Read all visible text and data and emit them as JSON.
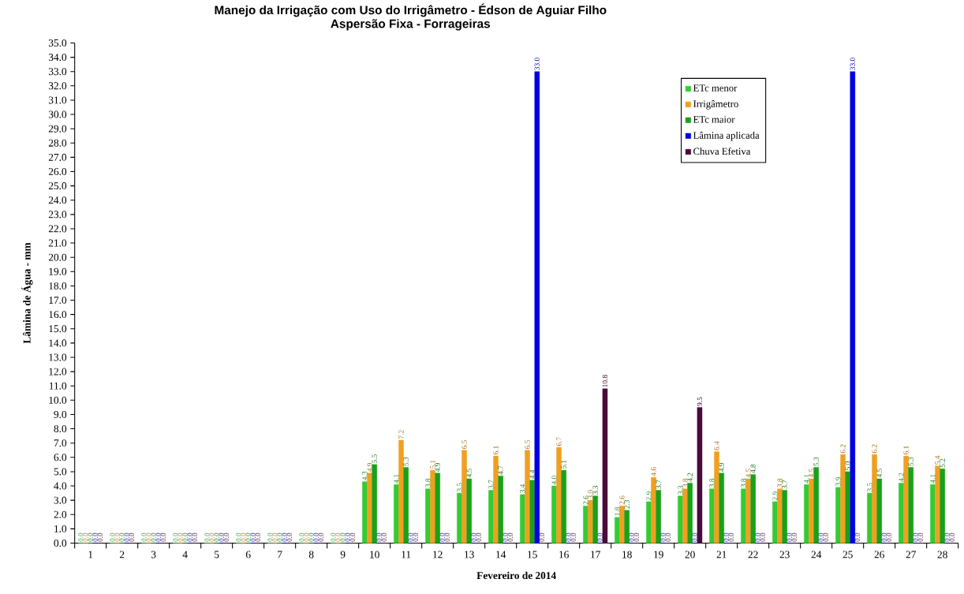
{
  "chart_data": {
    "type": "bar",
    "title": "Manejo da Irrigação com Uso do Irrigâmetro - Édson de Aguiar Filho",
    "subtitle": "Aspersão Fixa - Forrageiras",
    "xlabel": "Fevereiro de 2014",
    "ylabel": "Lâmina de Água - mm",
    "categories": [
      "1",
      "2",
      "3",
      "4",
      "5",
      "6",
      "7",
      "8",
      "9",
      "10",
      "11",
      "12",
      "13",
      "14",
      "15",
      "16",
      "17",
      "18",
      "19",
      "20",
      "21",
      "22",
      "23",
      "24",
      "25",
      "26",
      "27",
      "28"
    ],
    "series": [
      {
        "name": "ETc menor",
        "color": "#33cc33",
        "values": [
          0,
          0,
          0,
          0,
          0,
          0,
          0,
          0,
          0,
          4.3,
          4.1,
          3.8,
          3.5,
          3.7,
          3.4,
          4.0,
          2.6,
          1.8,
          2.9,
          3.3,
          3.8,
          3.8,
          2.9,
          4.1,
          3.9,
          3.5,
          4.2,
          4.1
        ],
        "value_labels": [
          "0.0",
          "0.0",
          "0.0",
          "0.0",
          "0.0",
          "0.0",
          "0.0",
          "0.0",
          "0.0",
          "4.3",
          "4.1",
          "3.8",
          "3.5",
          "3.7",
          "3.4",
          "4.0",
          "2.6",
          "1.8",
          "2.9",
          "3.3",
          "3.8",
          "3.8",
          "2.9",
          "4.1",
          "3.9",
          "3.5",
          "4.2",
          "4.1"
        ]
      },
      {
        "name": "Irrigâmetro",
        "color": "#f0a020",
        "values": [
          0,
          0,
          0,
          0,
          0,
          0,
          0,
          0,
          0,
          4.9,
          7.2,
          5.1,
          6.5,
          6.1,
          6.5,
          6.7,
          3.0,
          2.6,
          4.6,
          3.8,
          6.4,
          4.5,
          3.8,
          4.5,
          6.2,
          6.2,
          6.1,
          5.4
        ],
        "value_labels": [
          "0.0",
          "0.0",
          "0.0",
          "0.0",
          "0.0",
          "0.0",
          "0.0",
          "0.0",
          "0.0",
          "4.9",
          "7.2",
          "5.1",
          "6.5",
          "6.1",
          "6.5",
          "6.7",
          "3.0",
          "2.6",
          "4.6",
          "3.8",
          "6.4",
          "4.5",
          "3.8",
          "4.5",
          "6.2",
          "6.2",
          "6.1",
          "5.4"
        ]
      },
      {
        "name": "ETc maior",
        "color": "#1aa01a",
        "values": [
          0,
          0,
          0,
          0,
          0,
          0,
          0,
          0,
          0,
          5.5,
          5.3,
          4.9,
          4.5,
          4.7,
          4.4,
          5.1,
          3.3,
          2.3,
          3.7,
          4.2,
          4.9,
          4.8,
          3.7,
          5.3,
          5.0,
          4.5,
          5.3,
          5.2
        ],
        "value_labels": [
          "0.0",
          "0.0",
          "0.0",
          "0.0",
          "0.0",
          "0.0",
          "0.0",
          "0.0",
          "0.0",
          "5.5",
          "5.3",
          "4.9",
          "4.5",
          "4.7",
          "4.4",
          "5.1",
          "3.3",
          "2.3",
          "3.7",
          "4.2",
          "4.9",
          "4.8",
          "3.7",
          "5.3",
          "5.0",
          "4.5",
          "5.3",
          "5.2"
        ]
      },
      {
        "name": "Lâmina aplicada",
        "color": "#0000e0",
        "values": [
          0,
          0,
          0,
          0,
          0,
          0,
          0,
          0,
          0,
          0,
          0,
          0,
          0,
          0,
          33.0,
          0,
          0,
          0,
          0,
          0,
          0,
          0,
          0,
          0,
          33.0,
          0,
          0,
          0
        ],
        "value_labels": [
          "0.0",
          "0.0",
          "0.0",
          "0.0",
          "0.0",
          "0.0",
          "0.0",
          "0.0",
          "0.0",
          "0.0",
          "0.0",
          "0.0",
          "0.0",
          "0.0",
          "33.0",
          "0.0",
          "0.0",
          "0.0",
          "0.0",
          "0.0",
          "0.0",
          "0.0",
          "0.0",
          "0.0",
          "33.0",
          "0.0",
          "0.0",
          "0.0"
        ]
      },
      {
        "name": "Chuva Efetiva",
        "color": "#4a0a3a",
        "values": [
          0,
          0,
          0,
          0,
          0,
          0,
          0,
          0,
          0,
          0,
          0,
          0,
          0,
          0,
          0,
          0,
          10.8,
          0,
          0,
          9.5,
          0,
          0,
          0,
          0,
          0,
          0,
          0,
          0
        ],
        "value_labels": [
          "0.0",
          "0.0",
          "0.0",
          "0.0",
          "0.0",
          "0.0",
          "0.0",
          "0.0",
          "0.0",
          "0.0",
          "0.0",
          "0.0",
          "0.0",
          "0.0",
          "0.0",
          "0.0",
          "10.8",
          "0.0",
          "0.0",
          "9.5",
          "0.0",
          "0.0",
          "0.0",
          "0.0",
          "0.0",
          "0.0",
          "0.0",
          "0.0"
        ]
      }
    ],
    "ylim": [
      0,
      35
    ],
    "yticks": [
      {
        "value": 0,
        "label": "0.0"
      },
      {
        "value": 1,
        "label": "1.0"
      },
      {
        "value": 2,
        "label": "2.0"
      },
      {
        "value": 3,
        "label": "3.0"
      },
      {
        "value": 4,
        "label": "4.0"
      },
      {
        "value": 5,
        "label": "5.0"
      },
      {
        "value": 6,
        "label": "6.0"
      },
      {
        "value": 7,
        "label": "7.0"
      },
      {
        "value": 8,
        "label": "8.0"
      },
      {
        "value": 9,
        "label": "9.0"
      },
      {
        "value": 10,
        "label": "10.0"
      },
      {
        "value": 11,
        "label": "11.0"
      },
      {
        "value": 12,
        "label": "12.0"
      },
      {
        "value": 13,
        "label": "13.0"
      },
      {
        "value": 14,
        "label": "14.0"
      },
      {
        "value": 15,
        "label": "15.0"
      },
      {
        "value": 16,
        "label": "16.0"
      },
      {
        "value": 17,
        "label": "17.0"
      },
      {
        "value": 18,
        "label": "18.0"
      },
      {
        "value": 19,
        "label": "19.0"
      },
      {
        "value": 20,
        "label": "20.0"
      },
      {
        "value": 21,
        "label": "21.0"
      },
      {
        "value": 22,
        "label": "22.0"
      },
      {
        "value": 23,
        "label": "23.0"
      },
      {
        "value": 24,
        "label": "24.0"
      },
      {
        "value": 25,
        "label": "25.0"
      },
      {
        "value": 26,
        "label": "26.0"
      },
      {
        "value": 27,
        "label": "27.0"
      },
      {
        "value": 28,
        "label": "28.0"
      },
      {
        "value": 29,
        "label": "29.0"
      },
      {
        "value": 30,
        "label": "30.0"
      },
      {
        "value": 31,
        "label": "31.0"
      },
      {
        "value": 32,
        "label": "32.0"
      },
      {
        "value": 33,
        "label": "33.0"
      },
      {
        "value": 34,
        "label": "34.0"
      },
      {
        "value": 35,
        "label": "35.0"
      }
    ],
    "grid": false,
    "legend": "top right"
  }
}
